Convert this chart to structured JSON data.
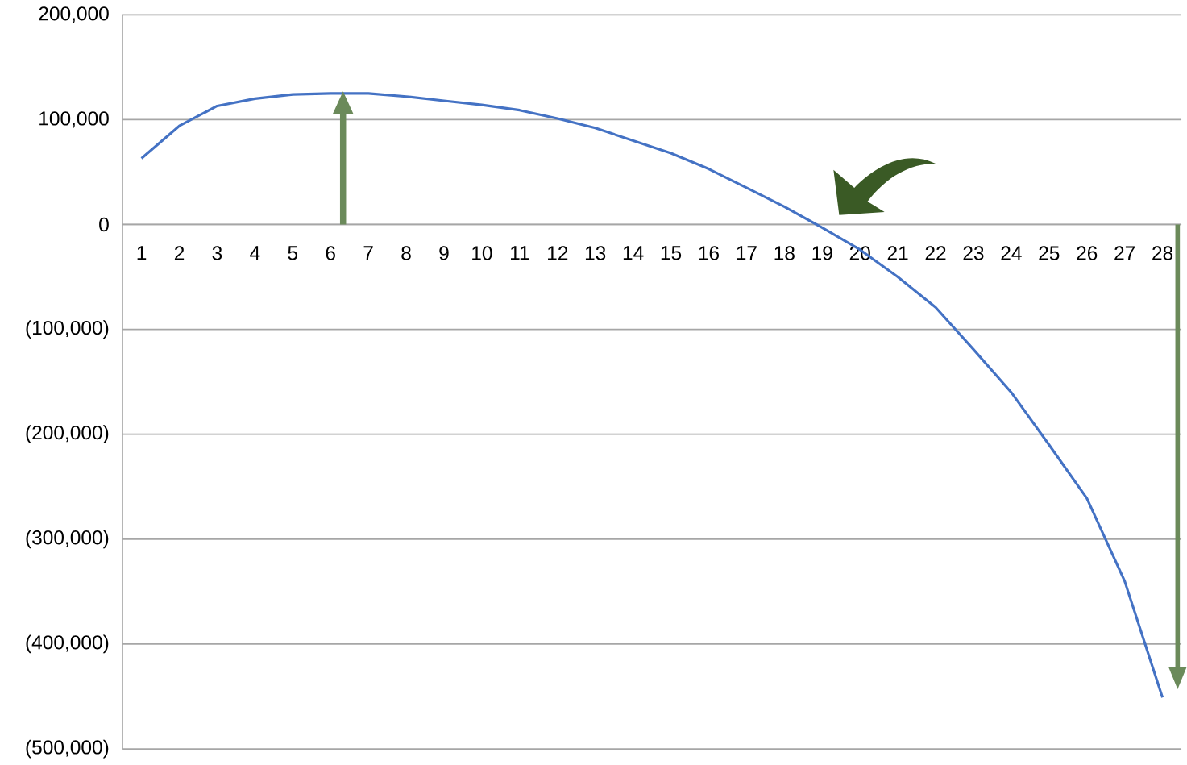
{
  "chart_data": {
    "type": "line",
    "categories": [
      "1",
      "2",
      "3",
      "4",
      "5",
      "6",
      "7",
      "8",
      "9",
      "10",
      "11",
      "12",
      "13",
      "14",
      "15",
      "16",
      "17",
      "18",
      "19",
      "20",
      "21",
      "22",
      "23",
      "24",
      "25",
      "26",
      "27",
      "28"
    ],
    "series": [
      {
        "color": "#4472c4",
        "values": [
          63000,
          94000,
          113000,
          120000,
          124000,
          125000,
          125000,
          122000,
          118000,
          114000,
          109000,
          101000,
          92000,
          80000,
          68000,
          53000,
          35000,
          17000,
          -3000,
          -24000,
          -50000,
          -79000,
          -119000,
          -160000,
          -210000,
          -261000,
          -340000,
          -451000
        ]
      }
    ],
    "ylim": [
      -500000,
      200000
    ],
    "yticks": [
      {
        "value": 200000,
        "label": "200,000"
      },
      {
        "value": 100000,
        "label": "100,000"
      },
      0,
      {
        "value": -100000,
        "label": "(100,000)"
      },
      {
        "value": -200000,
        "label": "(200,000)"
      },
      {
        "value": -300000,
        "label": "(300,000)"
      },
      {
        "value": -400000,
        "label": "(400,000)"
      },
      {
        "value": -500000,
        "label": "(500,000)"
      }
    ],
    "grid": "y",
    "marker": "none",
    "line_style": "solid"
  }
}
